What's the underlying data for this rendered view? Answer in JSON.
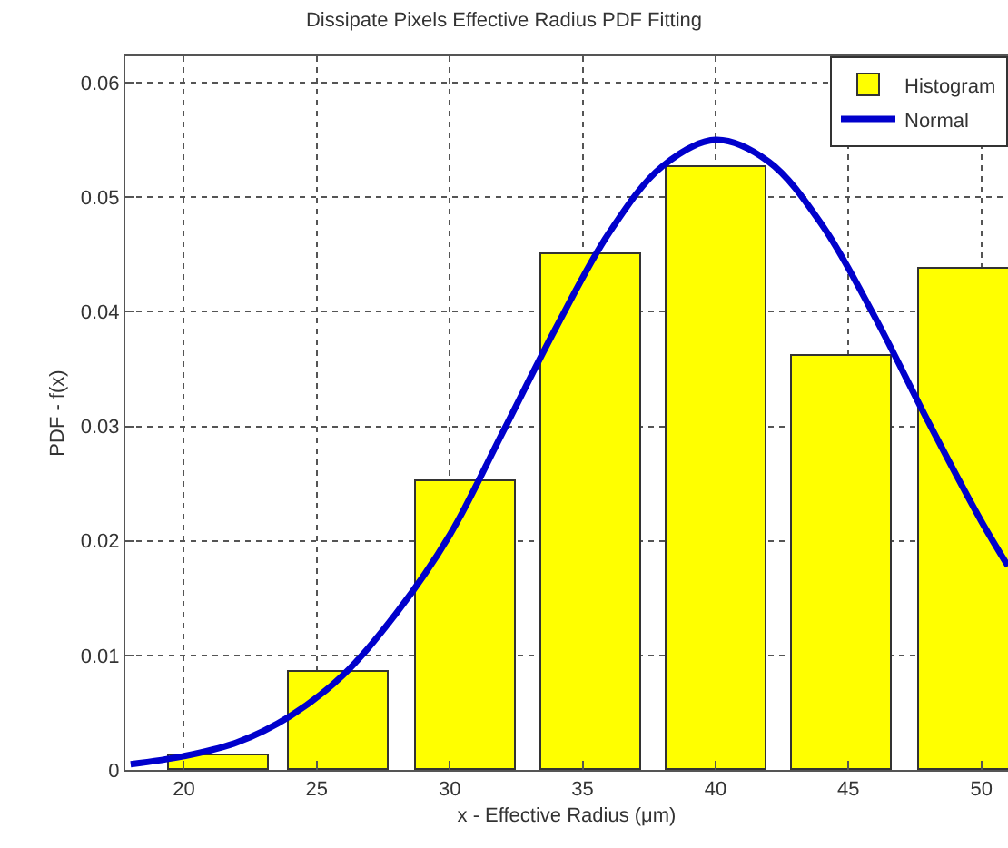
{
  "chart_data": {
    "type": "bar",
    "title": "Dissipate Pixels Effective Radius PDF Fitting",
    "xlabel": "x - Effective Radius (μm)",
    "ylabel": "PDF - f(x)",
    "series": [
      {
        "name": "Histogram",
        "color": "#ffff00",
        "x": [
          21.3,
          25.8,
          30.6,
          35.3,
          40.05,
          44.75,
          49.5
        ],
        "values": [
          0.0013,
          0.0086,
          0.0252,
          0.0451,
          0.0526,
          0.0362,
          0.0438
        ]
      },
      {
        "name": "Normal",
        "type": "line",
        "color": "#0000cc",
        "x": [
          18,
          20,
          22,
          24,
          26,
          28,
          30,
          32,
          34,
          36,
          38,
          40,
          42,
          44,
          46,
          48,
          50,
          51
        ],
        "values": [
          0.0005,
          0.0012,
          0.0024,
          0.0047,
          0.0083,
          0.0137,
          0.0205,
          0.0295,
          0.0386,
          0.0469,
          0.0527,
          0.055,
          0.0531,
          0.0476,
          0.0395,
          0.0304,
          0.0217,
          0.0178
        ]
      }
    ],
    "xlim": [
      17.8,
      51
    ],
    "xticks": [
      20,
      25,
      30,
      35,
      40,
      45,
      50
    ],
    "ylim": [
      0,
      0.0623
    ],
    "yticks": [
      0,
      0.01,
      0.02,
      0.03,
      0.04,
      0.05,
      0.06
    ],
    "grid": true,
    "legend": "top right",
    "marker": "none",
    "line_style": "solid"
  }
}
